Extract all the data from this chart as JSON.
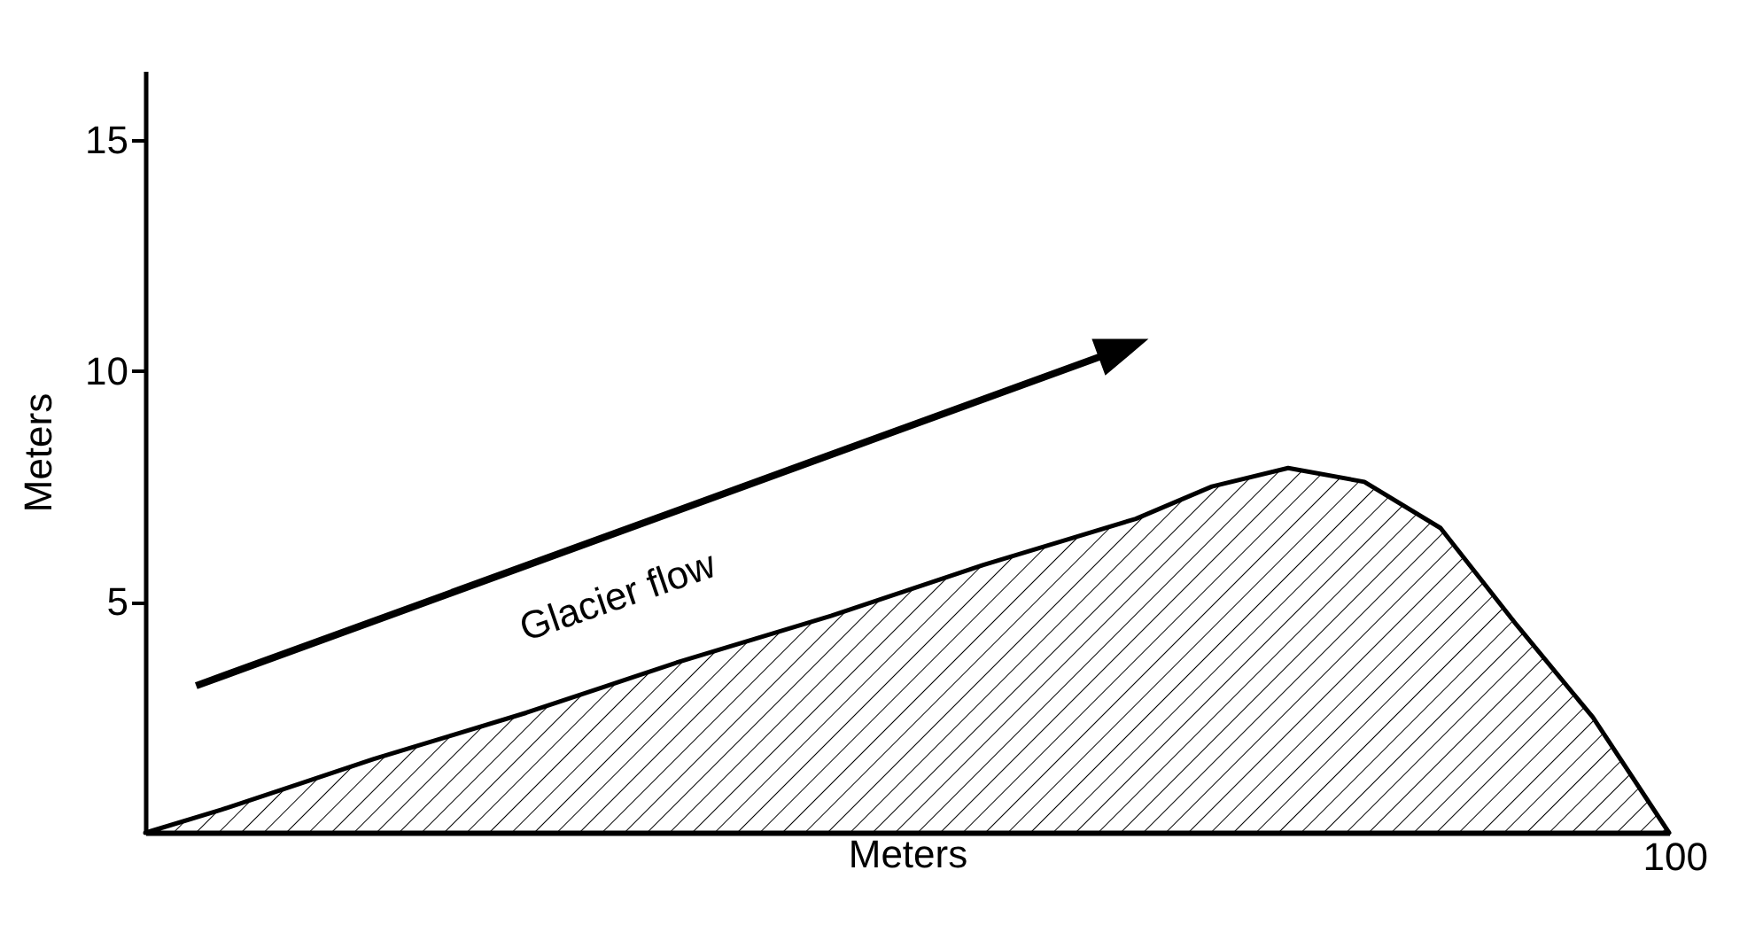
{
  "chart_data": {
    "type": "area",
    "xlabel": "Meters",
    "ylabel": "Meters",
    "categories": [
      null,
      null,
      null,
      null,
      null,
      null,
      null,
      null,
      null,
      null,
      null,
      null,
      null,
      null,
      null,
      null,
      null,
      null,
      null,
      null,
      null
    ],
    "series": [
      {
        "color": "#000000",
        "values": [
          0,
          0.5,
          1.05,
          1.6,
          2.1,
          2.6,
          3.15,
          3.7,
          4.2,
          4.7,
          5.25,
          5.8,
          6.3,
          6.8,
          7.5,
          7.9,
          7.6,
          6.6,
          4.5,
          2.5,
          0
        ]
      }
    ],
    "ylim": [
      0,
      16.5
    ],
    "yticks": [
      5,
      10,
      15
    ],
    "annotations": [
      "Glacier flow",
      "100"
    ],
    "grid": false
  }
}
